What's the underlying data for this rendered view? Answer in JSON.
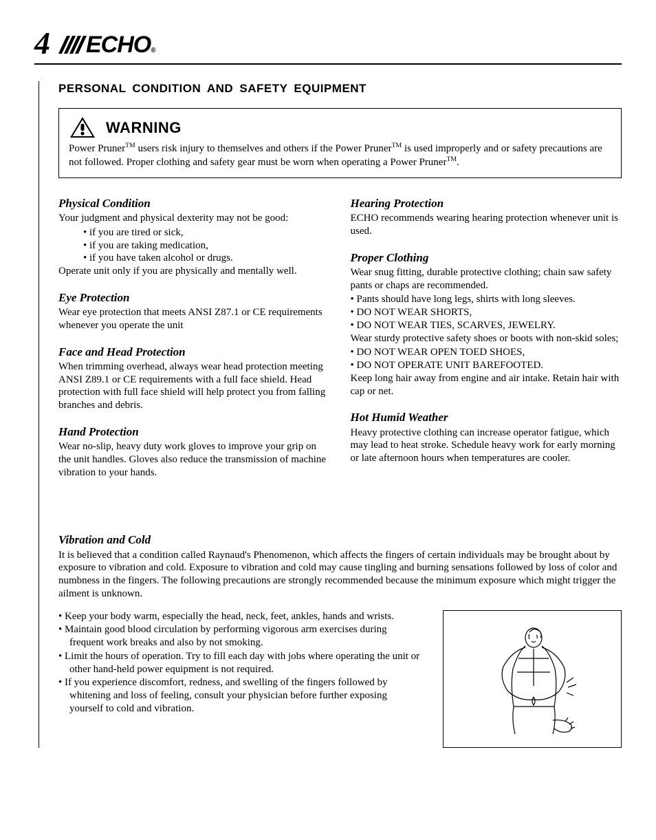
{
  "page_number": "4",
  "logo_text": "ECHO",
  "section_title": "PERSONAL CONDITION AND SAFETY EQUIPMENT",
  "warning": {
    "label": "WARNING",
    "text_html": "Power Pruner<sup class='tm'>TM</sup> users risk injury to themselves and others if the Power Pruner<sup class='tm'>TM</sup> is used improperly and or safety precautions are not followed.  Proper clothing and safety gear must be worn when operating a Power Pruner<sup class='tm'>TM</sup>."
  },
  "left_col": [
    {
      "title": "Physical Condition",
      "intro": "Your judgment and physical dexterity may not be good:",
      "items": [
        "• if you are tired or sick,",
        "• if you are taking medication,",
        "• if you have taken alcohol or drugs."
      ],
      "outro": "Operate unit only if you are physically and mentally well."
    },
    {
      "title": "Eye Protection",
      "body": "Wear eye protection that meets ANSI Z87.1 or CE requirements whenever you operate the unit"
    },
    {
      "title": "Face and Head Protection",
      "body": "When trimming overhead, always wear head protection meeting ANSI Z89.1 or CE requirements with a full face shield.  Head protection with full face shield will help protect you from falling branches and debris."
    },
    {
      "title": "Hand Protection",
      "body": "Wear no-slip, heavy duty work gloves to improve your grip on the unit handles. Gloves also reduce the transmission of machine vibration to your hands."
    }
  ],
  "right_col": [
    {
      "title": "Hearing Protection",
      "body": "ECHO recommends wearing hearing protection whenever unit is used."
    },
    {
      "title": "Proper Clothing",
      "intro": "Wear snug fitting, durable protective clothing; chain saw safety pants or chaps are recommended.",
      "items1": [
        "•  Pants should have long legs, shirts with long sleeves.",
        "•  DO NOT WEAR SHORTS,",
        "•  DO NOT WEAR TIES, SCARVES, JEWELRY."
      ],
      "mid": "Wear sturdy protective safety shoes or boots with non-skid soles;",
      "items2": [
        "•  DO NOT WEAR OPEN TOED SHOES,",
        "•  DO NOT OPERATE UNIT BAREFOOTED."
      ],
      "outro": "Keep long hair away from engine and air intake. Retain hair with cap or net."
    },
    {
      "title": "Hot Humid Weather",
      "body": "Heavy protective clothing can increase operator fatigue, which may lead to heat stroke. Schedule heavy work for early morning or late afternoon hours when temperatures are cooler."
    }
  ],
  "vibration": {
    "title": "Vibration and Cold",
    "intro": "It is believed that a condition called Raynaud's Phenomenon, which affects the fingers of certain individuals may be brought about by exposure to vibration and cold. Exposure to vibration and cold may cause tingling and burning sensations followed by loss of color and numbness in the fingers. The following precautions are strongly recommended because the minimum exposure which might trigger the ailment is unknown.",
    "items": [
      "•  Keep your body warm, especially the head, neck, feet, ankles, hands and wrists.",
      "•  Maintain good blood circulation by performing vigorous arm exercises during frequent work breaks and also by not smoking.",
      "•  Limit the hours of operation. Try to fill each day with jobs where operating the unit or other hand-held power equipment is not required.",
      "•  If you experience discomfort, redness, and swelling of the fingers followed by whitening and loss of feeling, consult your physician before further exposing yourself to cold and vibration."
    ]
  }
}
